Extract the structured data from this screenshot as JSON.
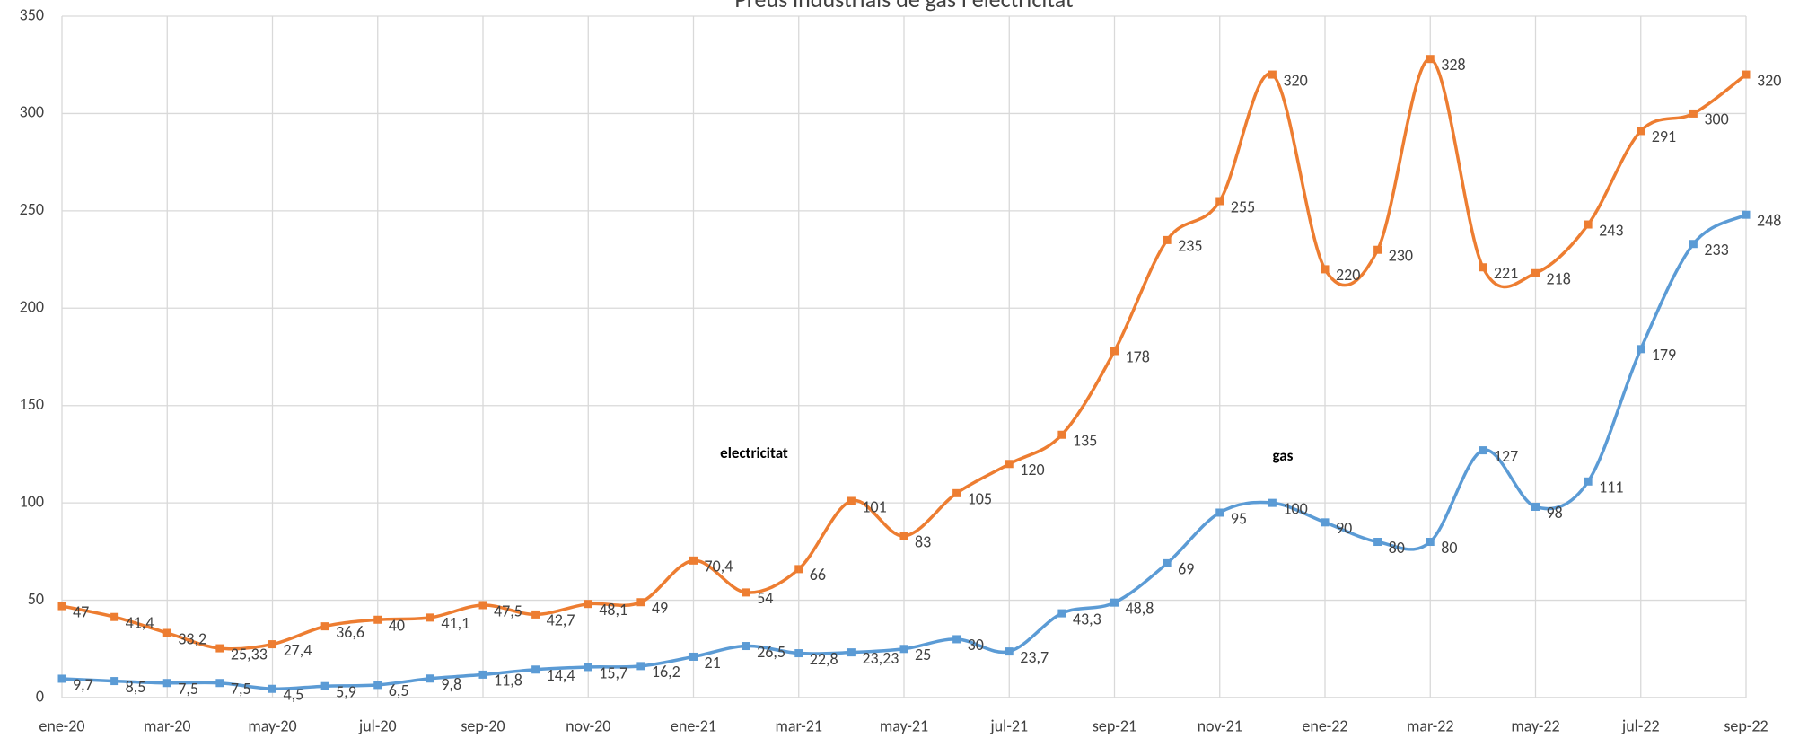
{
  "chart_data": {
    "type": "line",
    "title": "Preus industrials de gas i electricitat",
    "categories": [
      "ene-20",
      null,
      "mar-20",
      null,
      "may-20",
      null,
      "jul-20",
      null,
      "sep-20",
      null,
      "nov-20",
      null,
      "ene-21",
      null,
      "mar-21",
      null,
      "may-21",
      null,
      "jul-21",
      null,
      "sep-21",
      null,
      "nov-21",
      null,
      "ene-22",
      null,
      "mar-22",
      null,
      "may-22",
      null,
      "jul-22",
      null,
      "sep-22"
    ],
    "series": [
      {
        "name": "electricitat",
        "color": "#ED7D31",
        "values": [
          47,
          41.4,
          33.2,
          25.33,
          27.4,
          36.6,
          40,
          41.1,
          47.5,
          42.7,
          48.1,
          49,
          70.4,
          54,
          66,
          101,
          83,
          105,
          120,
          135,
          178,
          235,
          255,
          320,
          220,
          230,
          328,
          221,
          218,
          243,
          291,
          300,
          320
        ],
        "value_labels": [
          "47",
          "41,4",
          "33,2",
          "25,33",
          "27,4",
          "36,6",
          "40",
          "41,1",
          "47,5",
          "42,7",
          "48,1",
          "49",
          "70,4",
          "54",
          "66",
          "101",
          "83",
          "105",
          "120",
          "135",
          "178",
          "235",
          "255",
          "320",
          "220",
          "230",
          "328",
          "221",
          "218",
          "243",
          "291",
          "300",
          "320"
        ]
      },
      {
        "name": "gas",
        "color": "#5B9BD5",
        "values": [
          9.7,
          8.5,
          7.5,
          7.5,
          4.5,
          5.9,
          6.5,
          9.8,
          11.8,
          14.4,
          15.7,
          16.2,
          21,
          26.5,
          22.8,
          23.23,
          25,
          30,
          23.7,
          43.3,
          48.8,
          69,
          95,
          100,
          90,
          80,
          80,
          127,
          98,
          111,
          179,
          233,
          248
        ],
        "value_labels": [
          "9,7",
          "8,5",
          "7,5",
          "7,5",
          "4,5",
          "5,9",
          "6,5",
          "9,8",
          "11,8",
          "14,4",
          "15,7",
          "16,2",
          "21",
          "26,5",
          "22,8",
          "23,23",
          "25",
          "30",
          "23,7",
          "43,3",
          "48,8",
          "69",
          "95",
          "100",
          "90",
          "80",
          "80",
          "127",
          "98",
          "111",
          "179",
          "233",
          "248"
        ]
      }
    ],
    "annotations": [
      "electricitat",
      "gas"
    ],
    "ylim": [
      0,
      350
    ],
    "yticks": [
      0,
      50,
      100,
      150,
      200,
      250,
      300,
      350
    ],
    "grid": true
  }
}
